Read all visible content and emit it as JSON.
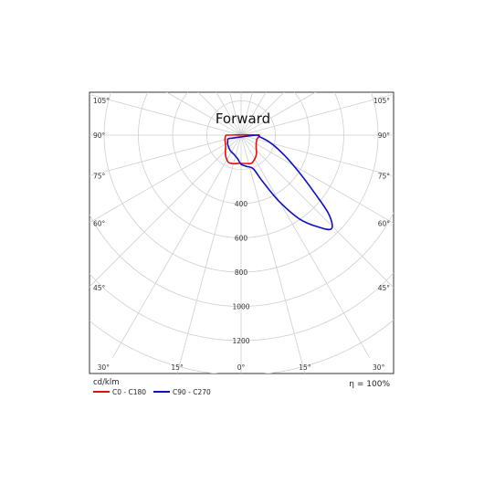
{
  "chart_data": {
    "type": "polar",
    "title": "Forward",
    "unit_label": "cd/klm",
    "efficiency_label": "η = 100%",
    "radial_ticks": [
      "400",
      "600",
      "800",
      "1000",
      "1200"
    ],
    "radial_tick_values": [
      400,
      600,
      800,
      1000,
      1200
    ],
    "radial_rings": [
      200,
      400,
      600,
      800,
      1000,
      1200,
      1400
    ],
    "angle_ticks": [
      "0°",
      "15°",
      "30°",
      "45°",
      "60°",
      "75°",
      "90°",
      "105°"
    ],
    "angle_tick_values": [
      0,
      15,
      30,
      45,
      60,
      75,
      90,
      105
    ],
    "legend_position": "bottom-left",
    "series": [
      {
        "name": "C0 - C180",
        "color": "#e01010",
        "points": [
          {
            "side": "left",
            "angle": 90,
            "value": 90
          },
          {
            "side": "left",
            "angle": 80,
            "value": 95
          },
          {
            "side": "left",
            "angle": 70,
            "value": 100
          },
          {
            "side": "left",
            "angle": 55,
            "value": 110
          },
          {
            "side": "left",
            "angle": 45,
            "value": 130
          },
          {
            "side": "left",
            "angle": 35,
            "value": 155
          },
          {
            "side": "left",
            "angle": 25,
            "value": 175
          },
          {
            "side": "left",
            "angle": 20,
            "value": 175
          },
          {
            "side": "left",
            "angle": 12,
            "value": 170
          },
          {
            "side": "left",
            "angle": 5,
            "value": 165
          },
          {
            "side": "right",
            "angle": 0,
            "value": 165
          },
          {
            "side": "right",
            "angle": 10,
            "value": 168
          },
          {
            "side": "right",
            "angle": 20,
            "value": 175
          },
          {
            "side": "right",
            "angle": 30,
            "value": 160
          },
          {
            "side": "right",
            "angle": 40,
            "value": 140
          },
          {
            "side": "right",
            "angle": 50,
            "value": 115
          },
          {
            "side": "right",
            "angle": 62,
            "value": 100
          },
          {
            "side": "right",
            "angle": 75,
            "value": 95
          },
          {
            "side": "right",
            "angle": 90,
            "value": 90
          }
        ]
      },
      {
        "name": "C90 - C270",
        "color": "#1010c0",
        "points": [
          {
            "side": "left",
            "angle": 75,
            "value": 80
          },
          {
            "side": "left",
            "angle": 55,
            "value": 95
          },
          {
            "side": "left",
            "angle": 35,
            "value": 110
          },
          {
            "side": "left",
            "angle": 20,
            "value": 120
          },
          {
            "side": "left",
            "angle": 8,
            "value": 140
          },
          {
            "side": "right",
            "angle": 0,
            "value": 170
          },
          {
            "side": "right",
            "angle": 10,
            "value": 185
          },
          {
            "side": "right",
            "angle": 20,
            "value": 210
          },
          {
            "side": "right",
            "angle": 25,
            "value": 300
          },
          {
            "side": "right",
            "angle": 30,
            "value": 450
          },
          {
            "side": "right",
            "angle": 35,
            "value": 600
          },
          {
            "side": "right",
            "angle": 40,
            "value": 700
          },
          {
            "side": "right",
            "angle": 44,
            "value": 760
          },
          {
            "side": "right",
            "angle": 48,
            "value": 690
          },
          {
            "side": "right",
            "angle": 52,
            "value": 540
          },
          {
            "side": "right",
            "angle": 58,
            "value": 390
          },
          {
            "side": "right",
            "angle": 65,
            "value": 280
          },
          {
            "side": "right",
            "angle": 75,
            "value": 180
          },
          {
            "side": "right",
            "angle": 85,
            "value": 110
          },
          {
            "side": "right",
            "angle": 90,
            "value": 90
          }
        ]
      }
    ]
  }
}
